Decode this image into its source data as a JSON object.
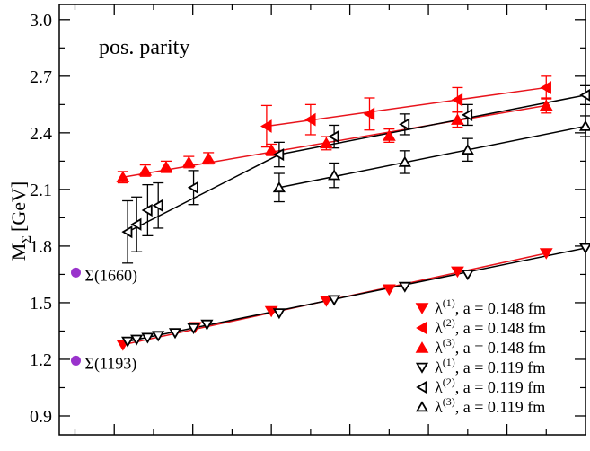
{
  "chart_data": {
    "type": "scatter",
    "title": "",
    "annotation": "pos. parity",
    "xlabel": "",
    "ylabel_main": "M",
    "ylabel_sub": "Σ",
    "ylabel_unit": "[GeV]",
    "x_units": "pion mass squared (arbitrary, unlabeled)",
    "xlim": [
      -0.04,
      1.3
    ],
    "ylim": [
      0.8,
      3.08
    ],
    "yticks": [
      0.9,
      1.2,
      1.5,
      1.8,
      2.1,
      2.4,
      2.7,
      3.0
    ],
    "ytick_labels": [
      "0.9",
      "1.2",
      "1.5",
      "1.8",
      "2.1",
      "2.4",
      "2.7",
      "3.0"
    ],
    "xticks_major": [
      0.1,
      0.3,
      0.5,
      0.7,
      0.9,
      1.1,
      1.3
    ],
    "xticks_minor": [
      0.0,
      0.2,
      0.4,
      0.6,
      0.8,
      1.0,
      1.2
    ],
    "colors": {
      "red": "#ff0000",
      "red_line": "#e8141c",
      "black": "#000000",
      "exp": "#9932cc"
    },
    "experimental": [
      {
        "label": "Σ(1660)",
        "x": 0.0,
        "y": 1.66
      },
      {
        "label": "Σ(1193)",
        "x": 0.0,
        "y": 1.193
      }
    ],
    "series": [
      {
        "name": "λ(1) a=0.148",
        "marker": "tri-down",
        "filled": true,
        "color": "#ff0000",
        "points": [
          [
            0.122,
            1.277,
            0.012
          ],
          [
            0.306,
            1.37,
            0.012
          ],
          [
            0.5,
            1.455,
            0.012
          ],
          [
            0.64,
            1.51,
            0.012
          ],
          [
            0.8,
            1.57,
            0.012
          ],
          [
            0.974,
            1.665,
            0.012
          ],
          [
            1.2,
            1.762,
            0.012
          ]
        ]
      },
      {
        "name": "λ(2) a=0.148",
        "marker": "tri-left",
        "filled": true,
        "color": "#ff0000",
        "points": [
          [
            0.488,
            2.435,
            0.11
          ],
          [
            0.6,
            2.47,
            0.08
          ],
          [
            0.75,
            2.5,
            0.085
          ],
          [
            0.974,
            2.575,
            0.065
          ],
          [
            1.2,
            2.64,
            0.06
          ]
        ]
      },
      {
        "name": "λ(3) a=0.148",
        "marker": "tri-up",
        "filled": true,
        "color": "#ff0000",
        "points": [
          [
            0.122,
            2.165,
            0.03
          ],
          [
            0.179,
            2.2,
            0.03
          ],
          [
            0.232,
            2.22,
            0.03
          ],
          [
            0.29,
            2.245,
            0.03
          ],
          [
            0.34,
            2.265,
            0.03
          ],
          [
            0.5,
            2.31,
            0.03
          ],
          [
            0.64,
            2.345,
            0.035
          ],
          [
            0.8,
            2.385,
            0.035
          ],
          [
            0.974,
            2.47,
            0.04
          ],
          [
            1.2,
            2.545,
            0.04
          ]
        ]
      },
      {
        "name": "λ(1) a=0.119",
        "marker": "tri-down",
        "filled": false,
        "color": "#000000",
        "points": [
          [
            0.134,
            1.295,
            0.012
          ],
          [
            0.157,
            1.305,
            0.012
          ],
          [
            0.185,
            1.315,
            0.012
          ],
          [
            0.212,
            1.325,
            0.012
          ],
          [
            0.255,
            1.34,
            0.012
          ],
          [
            0.302,
            1.365,
            0.012
          ],
          [
            0.336,
            1.385,
            0.012
          ],
          [
            0.52,
            1.445,
            0.012
          ],
          [
            0.66,
            1.515,
            0.012
          ],
          [
            0.84,
            1.585,
            0.012
          ],
          [
            1.0,
            1.65,
            0.012
          ],
          [
            1.3,
            1.79,
            0.012
          ]
        ]
      },
      {
        "name": "λ(2) a=0.119",
        "marker": "tri-left",
        "filled": false,
        "color": "#000000",
        "points": [
          [
            0.134,
            1.875,
            0.165
          ],
          [
            0.157,
            1.915,
            0.145
          ],
          [
            0.185,
            1.99,
            0.135
          ],
          [
            0.212,
            2.015,
            0.12
          ],
          [
            0.302,
            2.11,
            0.09
          ],
          [
            0.52,
            2.285,
            0.065
          ],
          [
            0.66,
            2.38,
            0.06
          ],
          [
            0.84,
            2.445,
            0.055
          ],
          [
            1.0,
            2.495,
            0.055
          ],
          [
            1.3,
            2.6,
            0.05
          ]
        ]
      },
      {
        "name": "λ(3) a=0.119",
        "marker": "tri-up",
        "filled": false,
        "color": "#000000",
        "points": [
          [
            0.52,
            2.11,
            0.075
          ],
          [
            0.66,
            2.175,
            0.065
          ],
          [
            0.84,
            2.245,
            0.06
          ],
          [
            1.0,
            2.31,
            0.06
          ],
          [
            1.3,
            2.435,
            0.055
          ]
        ]
      }
    ],
    "fit_lines": [
      {
        "color": "#e8141c",
        "points": [
          [
            0.122,
            1.277
          ],
          [
            1.2,
            1.762
          ]
        ]
      },
      {
        "color": "#e8141c",
        "points": [
          [
            0.488,
            2.435
          ],
          [
            1.2,
            2.64
          ]
        ]
      },
      {
        "color": "#e8141c",
        "points": [
          [
            0.122,
            2.165
          ],
          [
            1.2,
            2.545
          ]
        ]
      },
      {
        "color": "#000000",
        "points": [
          [
            0.134,
            1.295
          ],
          [
            1.3,
            1.79
          ]
        ]
      },
      {
        "color": "#000000",
        "points": [
          [
            0.134,
            1.875
          ],
          [
            0.52,
            2.285
          ],
          [
            1.3,
            2.6
          ]
        ]
      },
      {
        "color": "#000000",
        "points": [
          [
            0.52,
            2.11
          ],
          [
            1.3,
            2.435
          ]
        ]
      }
    ],
    "legend": {
      "position": "bottom-right",
      "entries": [
        {
          "sup": "(1)",
          "text": ", a = 0.148 fm",
          "marker": "tri-down",
          "filled": true,
          "color": "#ff0000"
        },
        {
          "sup": "(2)",
          "text": ", a = 0.148 fm",
          "marker": "tri-left",
          "filled": true,
          "color": "#ff0000"
        },
        {
          "sup": "(3)",
          "text": ", a = 0.148 fm",
          "marker": "tri-up",
          "filled": true,
          "color": "#ff0000"
        },
        {
          "sup": "(1)",
          "text": ", a = 0.119 fm",
          "marker": "tri-down",
          "filled": false,
          "color": "#000000"
        },
        {
          "sup": "(2)",
          "text": ", a = 0.119 fm",
          "marker": "tri-left",
          "filled": false,
          "color": "#000000"
        },
        {
          "sup": "(3)",
          "text": ", a = 0.119 fm",
          "marker": "tri-up",
          "filled": false,
          "color": "#000000"
        }
      ],
      "symbol": "λ"
    }
  }
}
